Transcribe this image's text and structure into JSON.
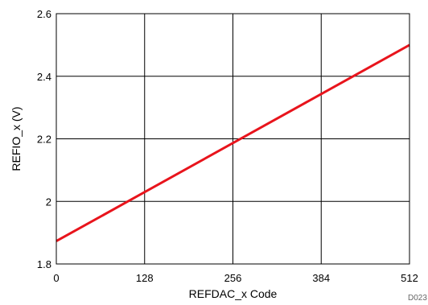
{
  "chart_data": {
    "type": "line",
    "xlabel": "REFDAC_x Code",
    "ylabel": "REFIO_x (V)",
    "xlim": [
      0,
      512
    ],
    "ylim": [
      1.8,
      2.6
    ],
    "x_ticks": [
      0,
      128,
      256,
      384,
      512
    ],
    "y_ticks": [
      1.8,
      2,
      2.2,
      2.4,
      2.6
    ],
    "x_tick_labels": [
      "0",
      "128",
      "256",
      "384",
      "512"
    ],
    "y_tick_labels": [
      "1.8",
      "2",
      "2.2",
      "2.4",
      "2.6"
    ],
    "grid": true,
    "series": [
      {
        "x": [
          0,
          512
        ],
        "y": [
          1.873,
          2.5
        ],
        "color": "#e8141c"
      }
    ],
    "figure_code": "D023"
  }
}
